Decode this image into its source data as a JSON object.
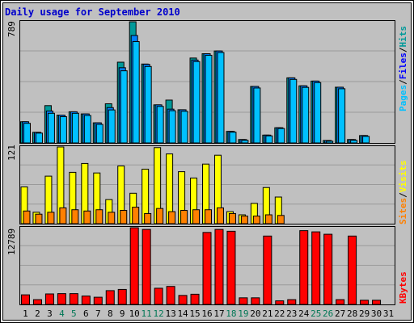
{
  "chart_data": {
    "type": "bar",
    "title": "Daily usage for September 2010",
    "categories": [
      "1",
      "2",
      "3",
      "4",
      "5",
      "6",
      "7",
      "8",
      "9",
      "10",
      "11",
      "12",
      "13",
      "14",
      "15",
      "16",
      "17",
      "18",
      "19",
      "20",
      "21",
      "22",
      "23",
      "24",
      "25",
      "26",
      "27",
      "28",
      "29",
      "30",
      "31"
    ],
    "weekend_days": [
      4,
      5,
      11,
      12,
      18,
      19,
      25,
      26
    ],
    "panels": [
      {
        "name": "pages-files-hits",
        "ymax_label": "789",
        "ylim": [
          0,
          789
        ],
        "series": [
          {
            "name": "Hits",
            "color": "#009999",
            "values": [
              138,
              69,
              243,
              181,
              203,
              189,
              131,
              255,
              526,
              789,
              514,
              248,
              279,
              216,
              553,
              581,
              599,
              75,
              22,
              368,
              51,
              99,
              424,
              372,
              403,
              16,
              363,
              22,
              48,
              0,
              0
            ]
          },
          {
            "name": "Files",
            "color": "#0080FF",
            "values": [
              138,
              69,
              208,
              181,
              203,
              189,
              131,
              230,
              490,
              700,
              512,
              248,
              220,
              216,
              540,
              581,
              599,
              75,
              22,
              368,
              51,
              99,
              424,
              372,
              403,
              16,
              363,
              22,
              48,
              0,
              0
            ]
          },
          {
            "name": "Pages",
            "color": "#00C0FF",
            "values": [
              128,
              64,
              193,
              171,
              193,
              179,
              121,
              215,
              470,
              660,
              498,
              238,
              210,
              206,
              530,
              571,
              589,
              70,
              17,
              358,
              46,
              94,
              414,
              362,
              393,
              11,
              353,
              17,
              43,
              0,
              0
            ]
          }
        ],
        "legend": [
          "Pages",
          "/",
          "Files",
          "/",
          "Hits"
        ]
      },
      {
        "name": "visits-sites",
        "ymax_label": "121",
        "ylim": [
          0,
          121
        ],
        "series": [
          {
            "name": "Visits",
            "color": "#FFFF00",
            "values": [
              58,
              18,
              75,
              121,
              81,
              95,
              80,
              38,
              91,
              48,
              86,
              120,
              110,
              82,
              72,
              94,
              108,
              19,
              14,
              32,
              57,
              42,
              0,
              0,
              0,
              0,
              0,
              0,
              0,
              0,
              0
            ]
          },
          {
            "name": "Sites",
            "color": "#FF8000",
            "values": [
              20,
              15,
              18,
              25,
              22,
              20,
              22,
              18,
              21,
              26,
              16,
              24,
              19,
              21,
              22,
              22,
              25,
              16,
              12,
              12,
              14,
              13,
              0,
              0,
              0,
              0,
              0,
              0,
              0,
              0,
              0
            ]
          }
        ],
        "legend": [
          "Sites",
          "/",
          "Visits"
        ]
      },
      {
        "name": "kbytes",
        "ymax_label": "12789",
        "ylim": [
          0,
          12789
        ],
        "series": [
          {
            "name": "KBytes",
            "color": "#FF0000",
            "values": [
              1600,
              800,
              1750,
              1800,
              1800,
              1400,
              1200,
              2300,
              2500,
              12789,
              12500,
              2700,
              3000,
              1500,
              1700,
              12000,
              12500,
              12200,
              1100,
              1100,
              11400,
              600,
              800,
              12300,
              12100,
              11700,
              800,
              11400,
              700,
              700,
              0
            ]
          }
        ],
        "legend": [
          "KBytes"
        ]
      }
    ]
  }
}
